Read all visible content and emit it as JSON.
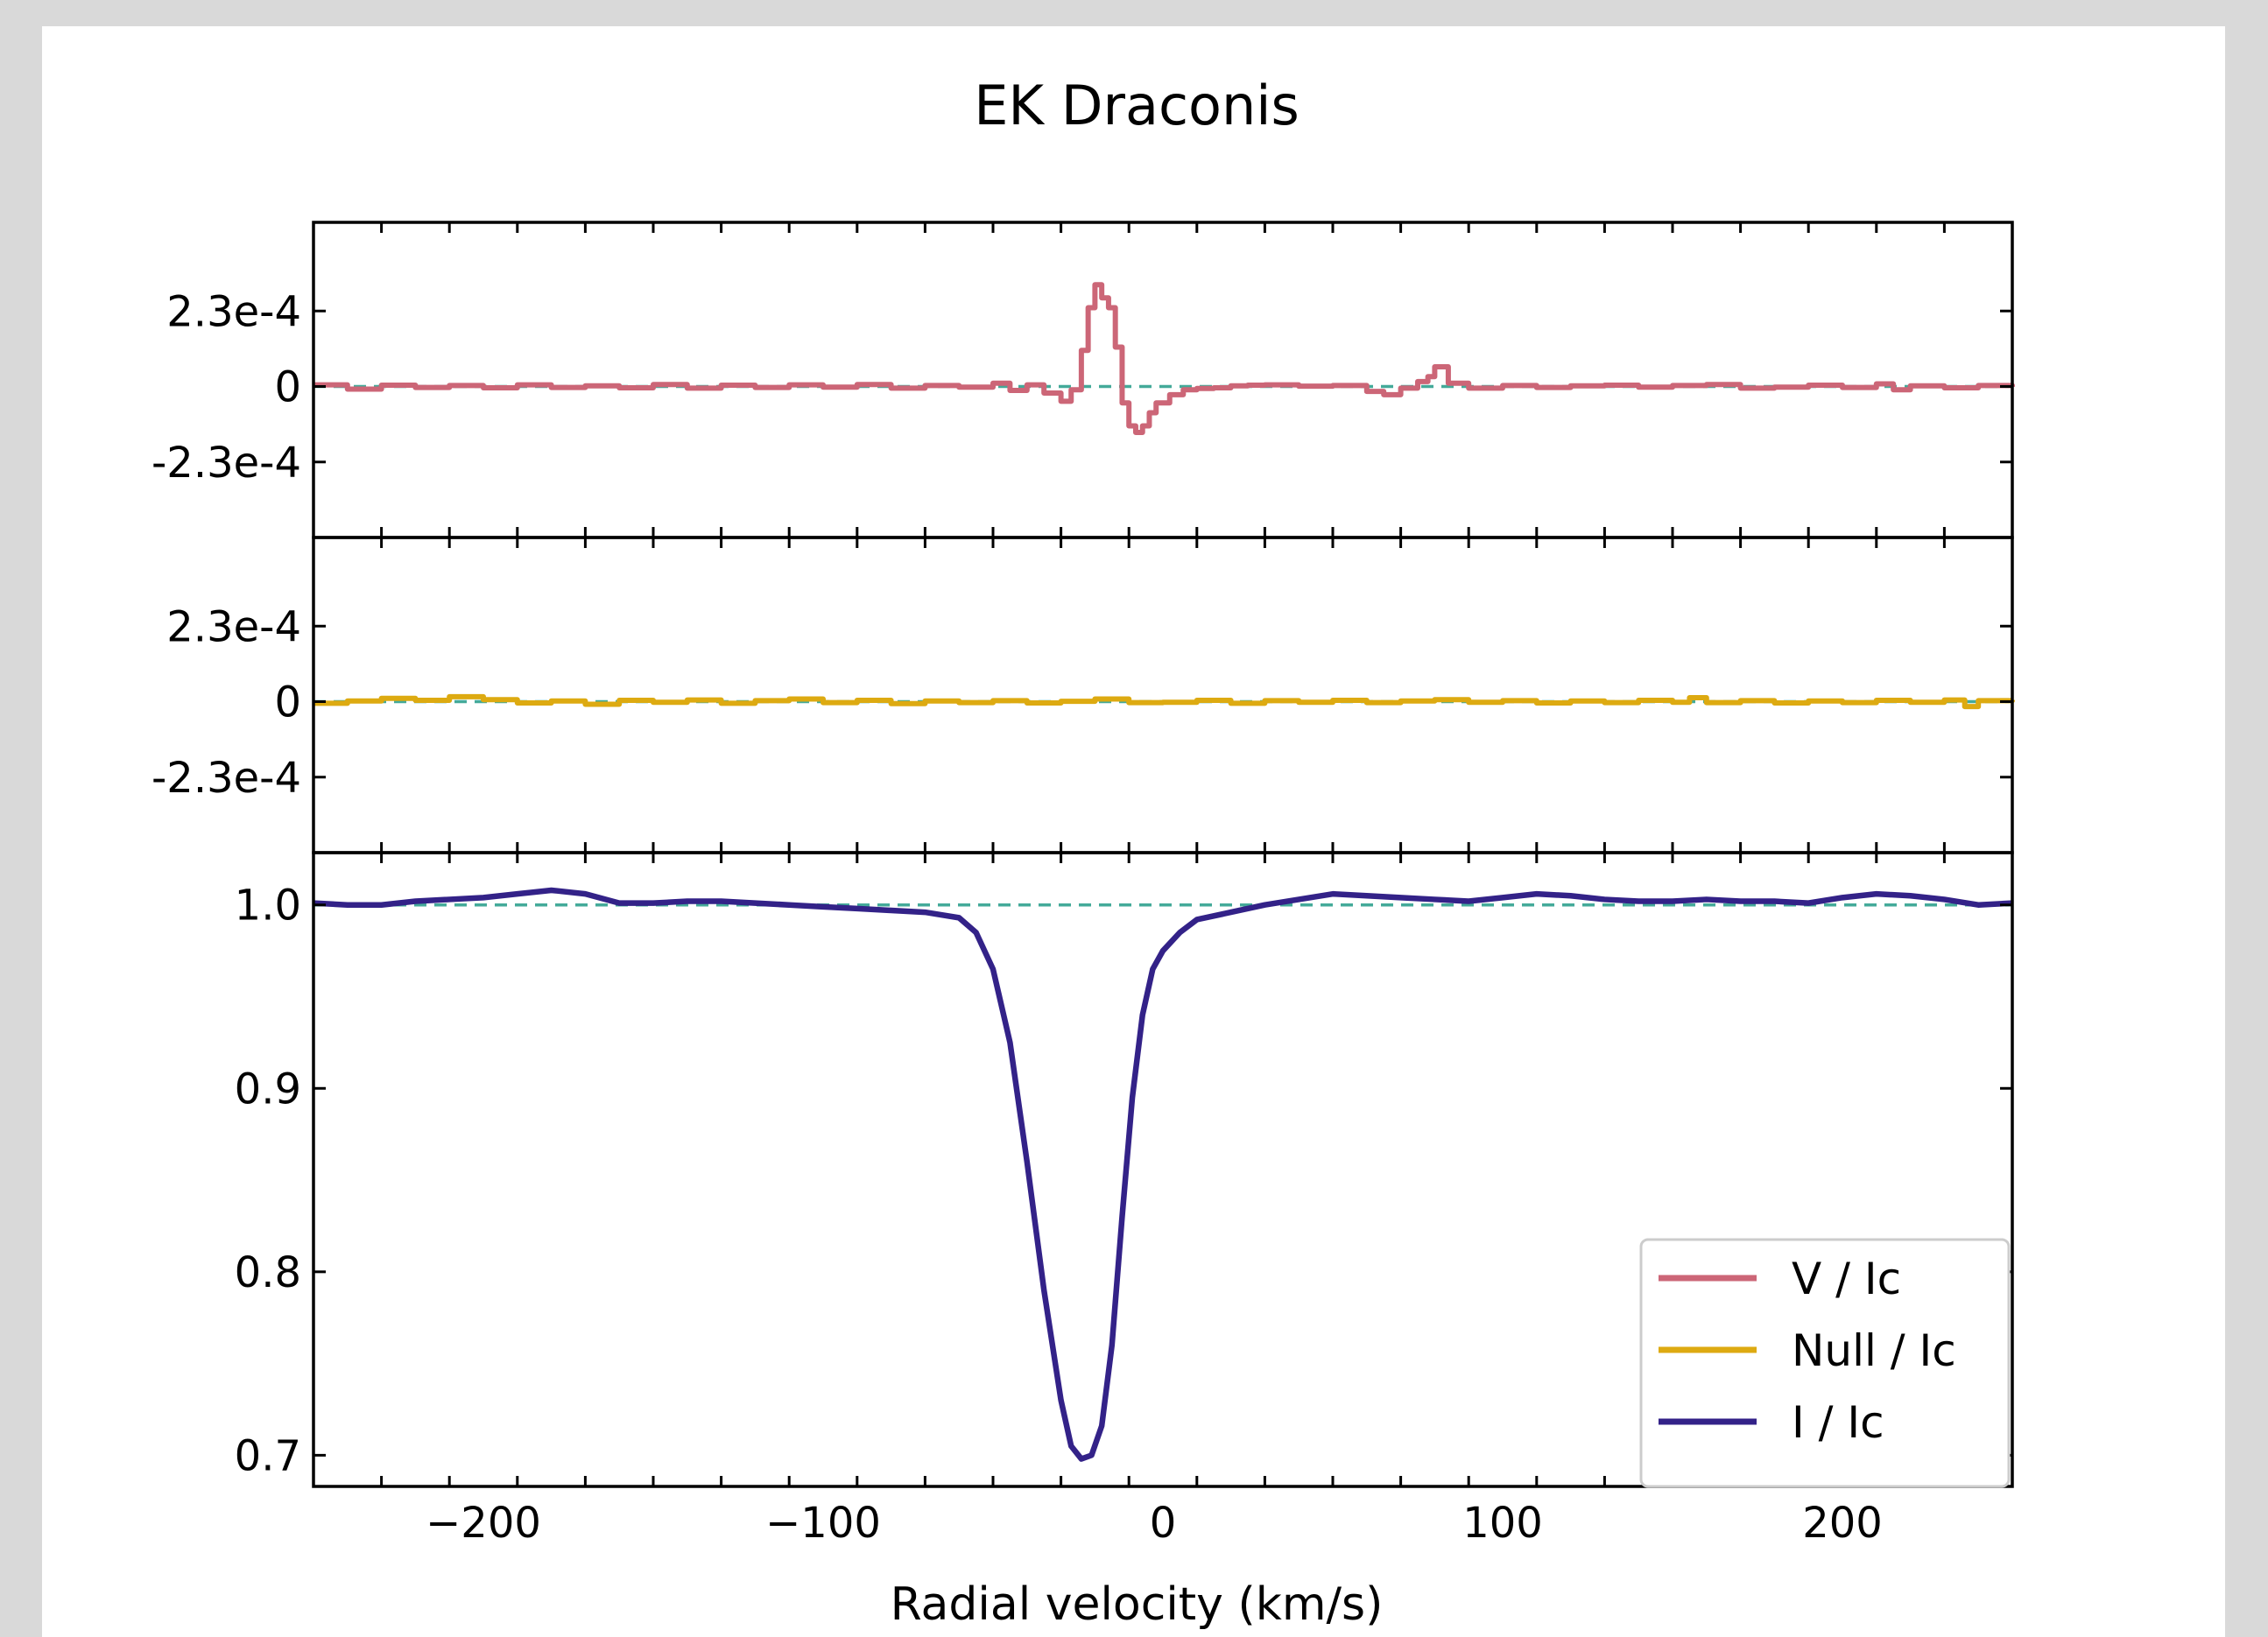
{
  "chart_data": {
    "type": "line",
    "title": "EK Draconis",
    "xlabel": "Radial velocity (km/s)",
    "xlim": [
      -250,
      250
    ],
    "x_ticks": [
      -200,
      -100,
      0,
      100,
      200
    ],
    "x_tick_labels": [
      "−200",
      "−100",
      "0",
      "100",
      "200"
    ],
    "panels": [
      {
        "name": "V / Ic",
        "color": "#cc6677",
        "ylim": [
          -0.00046,
          0.0005
        ],
        "y_ticks": [
          0.00023,
          0,
          -0.00023
        ],
        "y_tick_labels": [
          "2.3e-4",
          "0",
          "-2.3e-4"
        ],
        "reference": 0,
        "step": true,
        "points": [
          [
            -250,
            5e-06
          ],
          [
            -240,
            -8e-06
          ],
          [
            -230,
            4e-06
          ],
          [
            -220,
            -3e-06
          ],
          [
            -210,
            3e-06
          ],
          [
            -200,
            -4e-06
          ],
          [
            -190,
            5e-06
          ],
          [
            -180,
            -3e-06
          ],
          [
            -170,
            2e-06
          ],
          [
            -160,
            -4e-06
          ],
          [
            -150,
            6e-06
          ],
          [
            -140,
            -5e-06
          ],
          [
            -130,
            4e-06
          ],
          [
            -120,
            -3e-06
          ],
          [
            -110,
            5e-06
          ],
          [
            -100,
            -2e-06
          ],
          [
            -90,
            6e-06
          ],
          [
            -80,
            -5e-06
          ],
          [
            -70,
            3e-06
          ],
          [
            -60,
            -2e-06
          ],
          [
            -50,
            1e-05
          ],
          [
            -45,
            -1.2e-05
          ],
          [
            -40,
            5e-06
          ],
          [
            -35,
            -2e-05
          ],
          [
            -30,
            -4.5e-05
          ],
          [
            -27,
            -1e-05
          ],
          [
            -24,
            0.00011
          ],
          [
            -22,
            0.00024
          ],
          [
            -20,
            0.00031
          ],
          [
            -18,
            0.00027
          ],
          [
            -16,
            0.00024
          ],
          [
            -14,
            0.00012
          ],
          [
            -12,
            -5e-05
          ],
          [
            -10,
            -0.00012
          ],
          [
            -8,
            -0.00014
          ],
          [
            -6,
            -0.00012
          ],
          [
            -4,
            -8e-05
          ],
          [
            -2,
            -5e-05
          ],
          [
            2,
            -2.5e-05
          ],
          [
            6,
            -1e-05
          ],
          [
            10,
            -6e-06
          ],
          [
            15,
            -4e-06
          ],
          [
            20,
            2e-06
          ],
          [
            25,
            4e-06
          ],
          [
            30,
            5e-06
          ],
          [
            40,
            1e-06
          ],
          [
            50,
            3e-06
          ],
          [
            60,
            -1.5e-05
          ],
          [
            65,
            -2.5e-05
          ],
          [
            70,
            -5e-06
          ],
          [
            75,
            1.5e-05
          ],
          [
            78,
            3e-05
          ],
          [
            80,
            6e-05
          ],
          [
            84,
            1e-05
          ],
          [
            90,
            -5e-06
          ],
          [
            100,
            3e-06
          ],
          [
            110,
            -3e-06
          ],
          [
            120,
            2e-06
          ],
          [
            130,
            4e-06
          ],
          [
            140,
            -2e-06
          ],
          [
            150,
            3e-06
          ],
          [
            160,
            6e-06
          ],
          [
            170,
            -5e-06
          ],
          [
            180,
            -2e-06
          ],
          [
            190,
            4e-06
          ],
          [
            200,
            -3e-06
          ],
          [
            210,
            8e-06
          ],
          [
            215,
            -1e-05
          ],
          [
            220,
            2e-06
          ],
          [
            230,
            -4e-06
          ],
          [
            240,
            3e-06
          ],
          [
            250,
            -1e-06
          ]
        ]
      },
      {
        "name": "Null / Ic",
        "color": "#ddaa11",
        "ylim": [
          -0.00046,
          0.0005
        ],
        "y_ticks": [
          0.00023,
          0,
          -0.00023
        ],
        "y_tick_labels": [
          "2.3e-4",
          "0",
          "-2.3e-4"
        ],
        "reference": 0,
        "step": true,
        "points": [
          [
            -250,
            -5e-06
          ],
          [
            -240,
            2e-06
          ],
          [
            -230,
            1e-05
          ],
          [
            -220,
            4e-06
          ],
          [
            -210,
            1.5e-05
          ],
          [
            -200,
            6e-06
          ],
          [
            -190,
            -4e-06
          ],
          [
            -180,
            2e-06
          ],
          [
            -170,
            -8e-06
          ],
          [
            -160,
            4e-06
          ],
          [
            -150,
            -2e-06
          ],
          [
            -140,
            5e-06
          ],
          [
            -130,
            -5e-06
          ],
          [
            -120,
            3e-06
          ],
          [
            -110,
            8e-06
          ],
          [
            -100,
            -3e-06
          ],
          [
            -90,
            4e-06
          ],
          [
            -80,
            -6e-06
          ],
          [
            -70,
            2e-06
          ],
          [
            -60,
            -3e-06
          ],
          [
            -50,
            3e-06
          ],
          [
            -40,
            -4e-06
          ],
          [
            -30,
            1e-06
          ],
          [
            -20,
            8e-06
          ],
          [
            -10,
            -3e-06
          ],
          [
            0,
            -2e-06
          ],
          [
            10,
            4e-06
          ],
          [
            20,
            -5e-06
          ],
          [
            30,
            3e-06
          ],
          [
            40,
            -2e-06
          ],
          [
            50,
            4e-06
          ],
          [
            60,
            -3e-06
          ],
          [
            70,
            2e-06
          ],
          [
            80,
            6e-06
          ],
          [
            90,
            -2e-06
          ],
          [
            100,
            3e-06
          ],
          [
            110,
            -4e-06
          ],
          [
            120,
            2e-06
          ],
          [
            130,
            -3e-06
          ],
          [
            140,
            4e-06
          ],
          [
            150,
            -2e-06
          ],
          [
            155,
            1.2e-05
          ],
          [
            160,
            -3e-06
          ],
          [
            170,
            3e-06
          ],
          [
            180,
            -4e-06
          ],
          [
            190,
            2e-06
          ],
          [
            200,
            -3e-06
          ],
          [
            210,
            4e-06
          ],
          [
            220,
            -2e-06
          ],
          [
            230,
            5e-06
          ],
          [
            236,
            -1.5e-05
          ],
          [
            240,
            3e-06
          ],
          [
            250,
            5e-06
          ]
        ]
      },
      {
        "name": "I / Ic",
        "color": "#332288",
        "ylim": [
          0.683,
          1.0285
        ],
        "y_ticks": [
          1.0,
          0.9,
          0.8,
          0.7
        ],
        "y_tick_labels": [
          "1.0",
          "0.9",
          "0.8",
          "0.7"
        ],
        "reference": 1.0,
        "step": false,
        "points": [
          [
            -250,
            1.001
          ],
          [
            -240,
            1.0
          ],
          [
            -230,
            1.0
          ],
          [
            -220,
            1.002
          ],
          [
            -210,
            1.003
          ],
          [
            -200,
            1.004
          ],
          [
            -190,
            1.006
          ],
          [
            -180,
            1.008
          ],
          [
            -170,
            1.006
          ],
          [
            -160,
            1.001
          ],
          [
            -150,
            1.001
          ],
          [
            -140,
            1.002
          ],
          [
            -130,
            1.002
          ],
          [
            -120,
            1.001
          ],
          [
            -110,
            1.0
          ],
          [
            -100,
            0.999
          ],
          [
            -90,
            0.998
          ],
          [
            -80,
            0.997
          ],
          [
            -70,
            0.996
          ],
          [
            -60,
            0.993
          ],
          [
            -55,
            0.985
          ],
          [
            -50,
            0.965
          ],
          [
            -45,
            0.925
          ],
          [
            -40,
            0.86
          ],
          [
            -35,
            0.79
          ],
          [
            -30,
            0.73
          ],
          [
            -27,
            0.705
          ],
          [
            -24,
            0.698
          ],
          [
            -21,
            0.7
          ],
          [
            -18,
            0.716
          ],
          [
            -15,
            0.76
          ],
          [
            -12,
            0.83
          ],
          [
            -9,
            0.895
          ],
          [
            -6,
            0.94
          ],
          [
            -3,
            0.965
          ],
          [
            0,
            0.975
          ],
          [
            5,
            0.985
          ],
          [
            10,
            0.992
          ],
          [
            20,
            0.996
          ],
          [
            30,
            1.0
          ],
          [
            40,
            1.003
          ],
          [
            50,
            1.006
          ],
          [
            60,
            1.005
          ],
          [
            70,
            1.004
          ],
          [
            80,
            1.003
          ],
          [
            90,
            1.002
          ],
          [
            100,
            1.004
          ],
          [
            110,
            1.006
          ],
          [
            120,
            1.005
          ],
          [
            130,
            1.003
          ],
          [
            140,
            1.002
          ],
          [
            150,
            1.002
          ],
          [
            160,
            1.003
          ],
          [
            170,
            1.002
          ],
          [
            180,
            1.002
          ],
          [
            190,
            1.001
          ],
          [
            200,
            1.004
          ],
          [
            210,
            1.006
          ],
          [
            220,
            1.005
          ],
          [
            230,
            1.003
          ],
          [
            240,
            1.0
          ],
          [
            250,
            1.001
          ]
        ]
      }
    ],
    "legend": {
      "position": "lower-right",
      "entries": [
        {
          "label": "V / Ic",
          "color": "#cc6677"
        },
        {
          "label": "Null / Ic",
          "color": "#ddaa11"
        },
        {
          "label": "I / Ic",
          "color": "#332288"
        }
      ]
    },
    "reference_line_color": "#44aa99"
  }
}
